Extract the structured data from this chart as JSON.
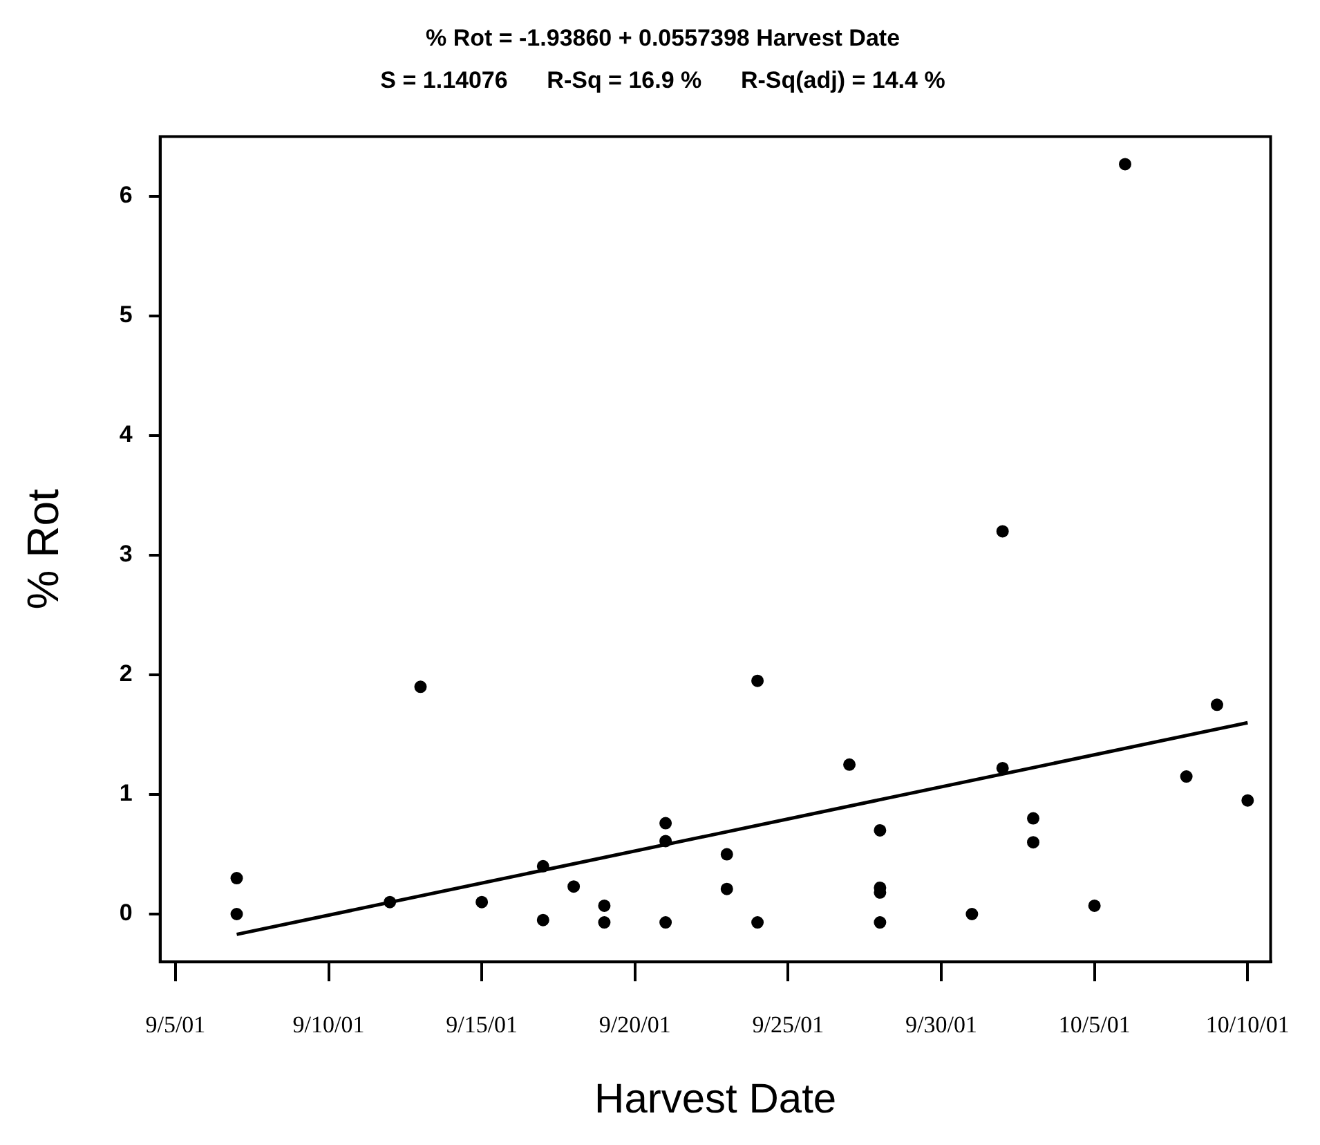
{
  "chart_data": {
    "type": "scatter",
    "title": "% Rot = -1.93860 + 0.0557398 Harvest Date",
    "subtitle": "S = 1.14076      R-Sq = 16.9 %      R-Sq(adj) = 14.4 %",
    "xlabel": "Harvest Date",
    "ylabel": "% Rot",
    "xlim": [
      "--09-04T12:00",
      "--10-10T18:00"
    ],
    "xticks": [
      {
        "value": "--09-05",
        "label": "9/5/01"
      },
      {
        "value": "--09-10",
        "label": "9/10/01"
      },
      {
        "value": "--09-15",
        "label": "9/15/01"
      },
      {
        "value": "--09-20",
        "label": "9/20/01"
      },
      {
        "value": "--09-25",
        "label": "9/25/01"
      },
      {
        "value": "--09-30",
        "label": "9/30/01"
      },
      {
        "value": "--10-05",
        "label": "10/5/01"
      },
      {
        "value": "--10-10",
        "label": "10/10/01"
      }
    ],
    "ylim": [
      -0.4,
      6.5
    ],
    "yticks": [
      0,
      1,
      2,
      3,
      4,
      5,
      6
    ],
    "grid": false,
    "legend": false,
    "marker": "circle",
    "series": [
      {
        "color": "#000000",
        "x": [
          "--09-07",
          "--09-07",
          "--09-12",
          "--09-13",
          "--09-15",
          "--09-17",
          "--09-17",
          "--09-18",
          "--09-19",
          "--09-19",
          "--09-21",
          "--09-21",
          "--09-21",
          "--09-23",
          "--09-23",
          "--09-24",
          "--09-24",
          "--09-27",
          "--09-28",
          "--09-28",
          "--09-28",
          "--09-28",
          "--10-01",
          "--10-02",
          "--10-02",
          "--10-03",
          "--10-03",
          "--10-05",
          "--10-06",
          "--10-08",
          "--10-09",
          "--10-10"
        ],
        "values": [
          0.3,
          0.0,
          0.1,
          1.9,
          0.1,
          0.4,
          -0.05,
          0.23,
          0.07,
          -0.07,
          0.76,
          0.61,
          -0.07,
          0.5,
          0.21,
          1.95,
          -0.07,
          1.25,
          0.7,
          0.22,
          0.18,
          -0.07,
          0.0,
          3.2,
          1.22,
          0.8,
          0.6,
          0.07,
          6.27,
          1.15,
          1.75,
          0.95
        ]
      },
      {
        "type": "line",
        "color": "#000000",
        "marker": "none",
        "x": [
          "--09-07",
          "--10-10"
        ],
        "values": [
          -0.17,
          1.6
        ]
      }
    ]
  }
}
